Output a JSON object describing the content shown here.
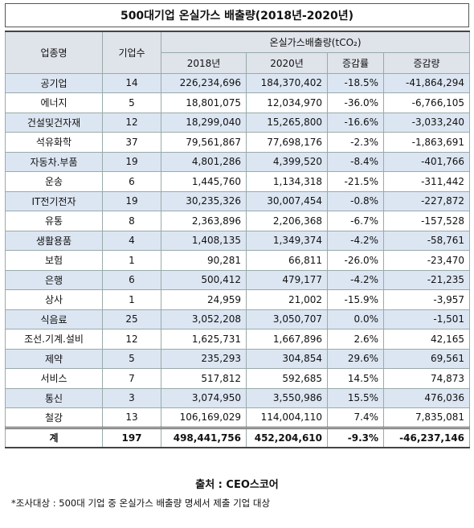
{
  "title": "500대기업 온실가스 배출량(2018년-2020년)",
  "header": {
    "industry": "업종명",
    "companies": "기업수",
    "emissions": "온실가스배출량(tCO₂)",
    "y2018": "2018년",
    "y2020": "2020년",
    "rate": "증감률",
    "change": "증감량"
  },
  "table": {
    "rows": [
      [
        "공기업",
        "14",
        "226,234,696",
        "184,370,402",
        "-18.5%",
        "-41,864,294"
      ],
      [
        "에너지",
        "5",
        "18,801,075",
        "12,034,970",
        "-36.0%",
        "-6,766,105"
      ],
      [
        "건설및건자재",
        "12",
        "18,299,040",
        "15,265,800",
        "-16.6%",
        "-3,033,240"
      ],
      [
        "석유화학",
        "37",
        "79,561,867",
        "77,698,176",
        "-2.3%",
        "-1,863,691"
      ],
      [
        "자동차.부품",
        "19",
        "4,801,286",
        "4,399,520",
        "-8.4%",
        "-401,766"
      ],
      [
        "운송",
        "6",
        "1,445,760",
        "1,134,318",
        "-21.5%",
        "-311,442"
      ],
      [
        "IT전기전자",
        "19",
        "30,235,326",
        "30,007,454",
        "-0.8%",
        "-227,872"
      ],
      [
        "유통",
        "8",
        "2,363,896",
        "2,206,368",
        "-6.7%",
        "-157,528"
      ],
      [
        "생활용품",
        "4",
        "1,408,135",
        "1,349,374",
        "-4.2%",
        "-58,761"
      ],
      [
        "보험",
        "1",
        "90,281",
        "66,811",
        "-26.0%",
        "-23,470"
      ],
      [
        "은행",
        "6",
        "500,412",
        "479,177",
        "-4.2%",
        "-21,235"
      ],
      [
        "상사",
        "1",
        "24,959",
        "21,002",
        "-15.9%",
        "-3,957"
      ],
      [
        "식음료",
        "25",
        "3,052,208",
        "3,050,707",
        "0.0%",
        "-1,501"
      ],
      [
        "조선.기계.설비",
        "12",
        "1,625,731",
        "1,667,896",
        "2.6%",
        "42,165"
      ],
      [
        "제약",
        "5",
        "235,293",
        "304,854",
        "29.6%",
        "69,561"
      ],
      [
        "서비스",
        "7",
        "517,812",
        "592,685",
        "14.5%",
        "74,873"
      ],
      [
        "통신",
        "3",
        "3,074,950",
        "3,550,986",
        "15.5%",
        "476,036"
      ],
      [
        "철강",
        "13",
        "106,169,029",
        "114,004,110",
        "7.4%",
        "7,835,081"
      ]
    ],
    "total": [
      "계",
      "197",
      "498,441,756",
      "452,204,610",
      "-9.3%",
      "-46,237,146"
    ]
  },
  "source": "출처 : CEO스코어",
  "note": "*조사대상 : 500대 기업 중 온실가스 배출량 명세서 제출 기업 대상"
}
